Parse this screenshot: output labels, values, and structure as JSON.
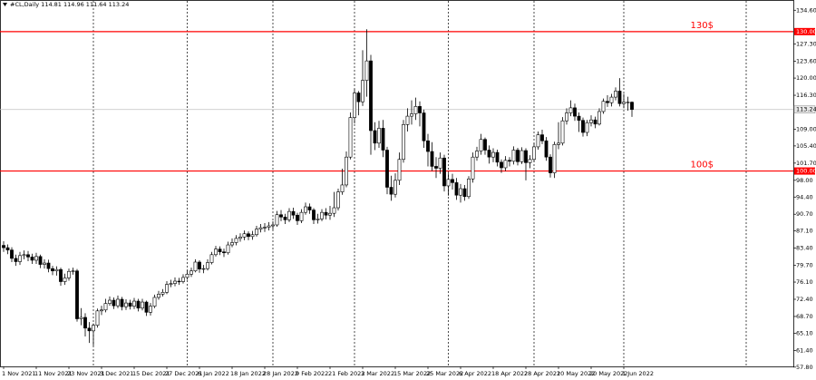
{
  "chart_data": {
    "type": "candlestick",
    "title": "#CL,Daily 114.81 114.96 111.64 113.24",
    "categories": [
      "1 Nov 2021",
      null,
      null,
      null,
      null,
      null,
      null,
      null,
      "11 Nov 2021",
      null,
      null,
      null,
      null,
      null,
      null,
      null,
      "23 Nov 2021",
      null,
      null,
      null,
      null,
      null,
      null,
      null,
      "3 Dec 2021",
      null,
      null,
      null,
      null,
      null,
      null,
      null,
      "15 Dec 2021",
      null,
      null,
      null,
      null,
      null,
      null,
      null,
      "27 Dec 2021",
      null,
      null,
      null,
      null,
      null,
      null,
      null,
      "6 Jan 2022",
      null,
      null,
      null,
      null,
      null,
      null,
      null,
      "18 Jan 2022",
      null,
      null,
      null,
      null,
      null,
      null,
      null,
      "28 Jan 2022",
      null,
      null,
      null,
      null,
      null,
      null,
      null,
      "9 Feb 2022",
      null,
      null,
      null,
      null,
      null,
      null,
      null,
      "21 Feb 2022",
      null,
      null,
      null,
      null,
      null,
      null,
      null,
      "3 Mar 2022",
      null,
      null,
      null,
      null,
      null,
      null,
      null,
      "15 Mar 2022",
      null,
      null,
      null,
      null,
      null,
      null,
      null,
      "25 Mar 2022",
      null,
      null,
      null,
      null,
      null,
      null,
      null,
      "6 Apr 2022",
      null,
      null,
      null,
      null,
      null,
      null,
      null,
      "18 Apr 2022",
      null,
      null,
      null,
      null,
      null,
      null,
      null,
      "28 Apr 2022",
      null,
      null,
      null,
      null,
      null,
      null,
      null,
      "10 May 2022",
      null,
      null,
      null,
      null,
      null,
      null,
      null,
      "20 May 2022",
      null,
      null,
      null,
      null,
      null,
      null,
      null,
      "1 Jun 2022",
      null,
      null
    ],
    "open": [
      84.0,
      83.5,
      83.0,
      81.2,
      80.5,
      81.8,
      82.0,
      81.5,
      80.8,
      81.6,
      79.9,
      80.2,
      79.0,
      78.5,
      78.8,
      76.2,
      77.0,
      78.4,
      78.5,
      68.2,
      68.5,
      66.2,
      65.6,
      66.8,
      69.9,
      70.1,
      71.5,
      72.2,
      71.0,
      72.4,
      70.8,
      71.6,
      70.9,
      72.0,
      70.5,
      71.8,
      69.6,
      70.9,
      72.8,
      73.5,
      73.9,
      75.6,
      75.8,
      76.3,
      76.2,
      77.1,
      77.8,
      78.5,
      80.4,
      78.9,
      79.0,
      80.3,
      82.0,
      83.2,
      82.6,
      82.4,
      84.1,
      84.6,
      85.5,
      85.8,
      86.5,
      85.9,
      86.3,
      87.5,
      87.8,
      87.9,
      88.2,
      88.4,
      90.6,
      90.1,
      89.5,
      91.3,
      90.5,
      89.3,
      91.1,
      92.3,
      91.6,
      89.5,
      89.7,
      91.1,
      90.5,
      90.9,
      92.1,
      95.5,
      97.0,
      103.0,
      111.5,
      116.8,
      114.9,
      119.5,
      123.7,
      108.7,
      106.0,
      109.2,
      104.5,
      96.5,
      95.0,
      98.0,
      102.5,
      110.0,
      111.8,
      112.3,
      113.9,
      112.5,
      106.5,
      104.2,
      101.0,
      100.6,
      102.8,
      96.8,
      98.2,
      97.5,
      94.8,
      96.2,
      94.5,
      98.3,
      103.0,
      104.3,
      106.8,
      104.5,
      103.0,
      104.0,
      101.9,
      100.7,
      102.3,
      102.1,
      104.5,
      102.0,
      104.4,
      101.8,
      102.5,
      105.2,
      107.8,
      106.5,
      103.0,
      99.6,
      105.7,
      106.0,
      110.8,
      112.5,
      113.6,
      111.8,
      110.9,
      108.3,
      110.4,
      111.0,
      110.1,
      112.8,
      115.0,
      114.7,
      115.9,
      117.2,
      114.5,
      114.8,
      114.81
    ],
    "high": [
      84.9,
      84.2,
      83.6,
      82.0,
      82.6,
      82.9,
      82.8,
      82.2,
      82.4,
      82.0,
      81.0,
      80.9,
      79.6,
      79.5,
      79.2,
      77.9,
      79.0,
      79.2,
      78.9,
      70.5,
      69.4,
      67.5,
      67.2,
      70.4,
      71.0,
      72.5,
      73.0,
      72.8,
      73.2,
      72.9,
      72.4,
      72.3,
      72.7,
      72.5,
      72.5,
      72.1,
      71.6,
      73.4,
      74.2,
      74.6,
      76.3,
      76.6,
      77.1,
      77.0,
      77.8,
      78.6,
      79.2,
      81.0,
      80.8,
      79.8,
      81.0,
      82.6,
      83.9,
      83.8,
      83.3,
      84.8,
      85.5,
      86.2,
      86.6,
      87.2,
      87.0,
      87.1,
      88.2,
      88.6,
      88.8,
      89.0,
      89.2,
      91.4,
      91.6,
      90.8,
      92.0,
      92.1,
      91.0,
      91.8,
      93.2,
      93.0,
      92.0,
      90.8,
      91.8,
      92.0,
      92.5,
      95.5,
      96.2,
      100.5,
      104.2,
      112.6,
      117.6,
      117.2,
      126.0,
      130.5,
      125.0,
      110.5,
      110.8,
      111.0,
      105.2,
      99.0,
      99.5,
      104.0,
      111.0,
      113.5,
      115.2,
      115.8,
      115.0,
      113.2,
      108.0,
      106.2,
      103.0,
      104.0,
      103.5,
      99.5,
      99.4,
      98.5,
      97.2,
      97.0,
      98.9,
      104.0,
      105.2,
      108.0,
      107.2,
      105.5,
      104.9,
      104.6,
      102.5,
      103.2,
      103.0,
      105.3,
      105.0,
      105.1,
      104.9,
      103.4,
      106.0,
      108.5,
      108.9,
      107.3,
      103.6,
      106.3,
      110.5,
      111.6,
      113.5,
      115.2,
      114.5,
      112.6,
      111.5,
      111.0,
      112.0,
      111.7,
      113.5,
      115.6,
      116.3,
      116.6,
      118.0,
      120.0,
      116.6,
      116.0,
      114.96
    ],
    "low": [
      82.6,
      82.1,
      80.4,
      79.6,
      79.8,
      81.0,
      80.6,
      80.0,
      80.0,
      79.1,
      79.0,
      78.2,
      77.6,
      77.5,
      75.3,
      75.5,
      76.4,
      77.7,
      67.6,
      66.8,
      64.4,
      63.0,
      62.4,
      66.3,
      69.0,
      69.6,
      71.0,
      70.3,
      70.5,
      70.0,
      70.1,
      70.2,
      70.3,
      69.8,
      70.0,
      68.8,
      68.9,
      70.5,
      72.3,
      73.0,
      73.5,
      75.0,
      75.2,
      75.5,
      75.8,
      76.6,
      77.2,
      78.2,
      78.1,
      78.0,
      78.6,
      79.9,
      81.6,
      81.9,
      81.5,
      82.0,
      83.6,
      84.0,
      84.8,
      85.1,
      85.1,
      85.2,
      85.9,
      86.8,
      86.9,
      87.2,
      87.4,
      88.0,
      89.2,
      88.6,
      89.0,
      89.7,
      88.4,
      88.8,
      90.6,
      90.8,
      88.6,
      88.7,
      89.2,
      89.6,
      89.5,
      90.1,
      91.5,
      94.9,
      96.5,
      102.5,
      110.2,
      112.0,
      114.0,
      116.0,
      103.5,
      104.5,
      105.0,
      103.0,
      95.0,
      93.6,
      94.3,
      97.0,
      101.8,
      108.5,
      110.0,
      111.0,
      109.6,
      105.0,
      101.0,
      100.0,
      98.5,
      99.4,
      95.6,
      94.7,
      96.0,
      93.8,
      93.2,
      93.6,
      94.0,
      97.5,
      102.2,
      103.5,
      103.5,
      101.6,
      101.9,
      101.0,
      99.6,
      100.0,
      101.0,
      101.4,
      101.2,
      101.5,
      98.0,
      100.6,
      102.0,
      104.6,
      105.8,
      102.2,
      98.6,
      98.5,
      104.7,
      105.5,
      110.0,
      111.8,
      110.8,
      108.4,
      107.4,
      107.5,
      109.6,
      109.2,
      109.8,
      112.3,
      113.8,
      113.9,
      115.2,
      113.9,
      113.5,
      113.0,
      111.64
    ],
    "close": [
      83.5,
      83.0,
      81.2,
      80.5,
      81.8,
      82.0,
      81.5,
      80.8,
      81.6,
      79.9,
      80.2,
      79.0,
      78.5,
      78.8,
      76.2,
      77.0,
      78.4,
      78.5,
      68.2,
      68.5,
      66.2,
      65.6,
      66.8,
      69.9,
      70.1,
      71.5,
      72.2,
      71.0,
      72.4,
      70.8,
      71.6,
      70.9,
      72.0,
      70.5,
      71.8,
      69.6,
      70.9,
      72.8,
      73.5,
      73.9,
      75.6,
      75.8,
      76.3,
      76.2,
      77.1,
      77.8,
      78.5,
      80.4,
      78.9,
      79.0,
      80.3,
      82.0,
      83.2,
      82.6,
      82.4,
      84.1,
      84.6,
      85.5,
      85.8,
      86.5,
      85.9,
      86.3,
      87.5,
      87.8,
      87.9,
      88.2,
      88.4,
      90.6,
      90.1,
      89.5,
      91.3,
      90.5,
      89.3,
      91.1,
      92.3,
      91.6,
      89.5,
      89.7,
      91.1,
      90.5,
      90.9,
      92.1,
      95.5,
      97.0,
      103.0,
      111.5,
      116.8,
      114.9,
      119.5,
      123.7,
      108.7,
      106.0,
      109.2,
      104.5,
      96.5,
      95.0,
      98.0,
      102.5,
      110.0,
      111.8,
      112.3,
      113.9,
      112.5,
      106.5,
      104.2,
      101.0,
      100.6,
      102.8,
      96.8,
      98.2,
      97.5,
      94.8,
      96.2,
      94.5,
      98.3,
      103.0,
      104.3,
      106.8,
      104.5,
      103.0,
      104.0,
      101.9,
      100.7,
      102.3,
      102.1,
      104.5,
      102.0,
      104.4,
      101.8,
      102.5,
      105.2,
      107.8,
      106.5,
      103.0,
      99.6,
      105.7,
      106.0,
      110.8,
      112.5,
      113.6,
      111.8,
      110.9,
      108.3,
      110.4,
      111.0,
      110.1,
      112.8,
      115.0,
      114.7,
      115.9,
      117.2,
      114.5,
      114.8,
      114.81,
      113.24
    ],
    "ylim": [
      56.2,
      136.8
    ],
    "yticks": [
      {
        "value": 134.6,
        "label": "134.60"
      },
      {
        "value": 127.3,
        "label": "127.30"
      },
      {
        "value": 123.6,
        "label": "123.60"
      },
      {
        "value": 120,
        "label": "120.00"
      },
      {
        "value": 116.3,
        "label": "116.30"
      },
      {
        "value": 109,
        "label": "109.00"
      },
      {
        "value": 105.4,
        "label": "105.40"
      },
      {
        "value": 101.7,
        "label": "101.70"
      },
      {
        "value": 98,
        "label": "98.00"
      },
      {
        "value": 94.4,
        "label": "94.40"
      },
      {
        "value": 90.7,
        "label": "90.70"
      },
      {
        "value": 87.1,
        "label": "87.10"
      },
      {
        "value": 83.4,
        "label": "83.40"
      },
      {
        "value": 79.7,
        "label": "79.70"
      },
      {
        "value": 76.1,
        "label": "76.10"
      },
      {
        "value": 72.4,
        "label": "72.40"
      },
      {
        "value": 68.7,
        "label": "68.70"
      },
      {
        "value": 65.1,
        "label": "65.10"
      },
      {
        "value": 61.4,
        "label": "61.40"
      },
      {
        "value": 57.8,
        "label": "57.80"
      }
    ],
    "levels": [
      {
        "value": 130,
        "label": "130.00",
        "annotation": "130$",
        "color": "#ff0000"
      },
      {
        "value": 100,
        "label": "100.00",
        "annotation": "100$",
        "color": "#ff0000"
      }
    ],
    "current_price": {
      "value": 113.24,
      "color": "#c0c0c0"
    },
    "up_color": "#ffffff",
    "down_color": "#000000"
  }
}
